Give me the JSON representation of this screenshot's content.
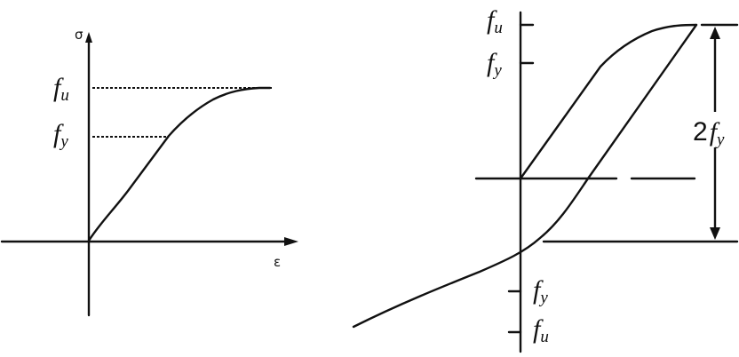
{
  "left_panel": {
    "y_axis_label": "σ",
    "x_axis_label": "ε",
    "level_labels": [
      {
        "main": "f",
        "sub": "u"
      },
      {
        "main": "f",
        "sub": "y"
      }
    ]
  },
  "right_panel": {
    "top_labels": [
      {
        "main": "f",
        "sub": "u"
      },
      {
        "main": "f",
        "sub": "y"
      }
    ],
    "bottom_labels": [
      {
        "main": "f",
        "sub": "y"
      },
      {
        "main": "f",
        "sub": "u"
      }
    ],
    "dimension_label": {
      "coef": "2",
      "main": "f",
      "sub": "y"
    }
  },
  "colors": {
    "ink": "#111111",
    "background": "#ffffff"
  }
}
